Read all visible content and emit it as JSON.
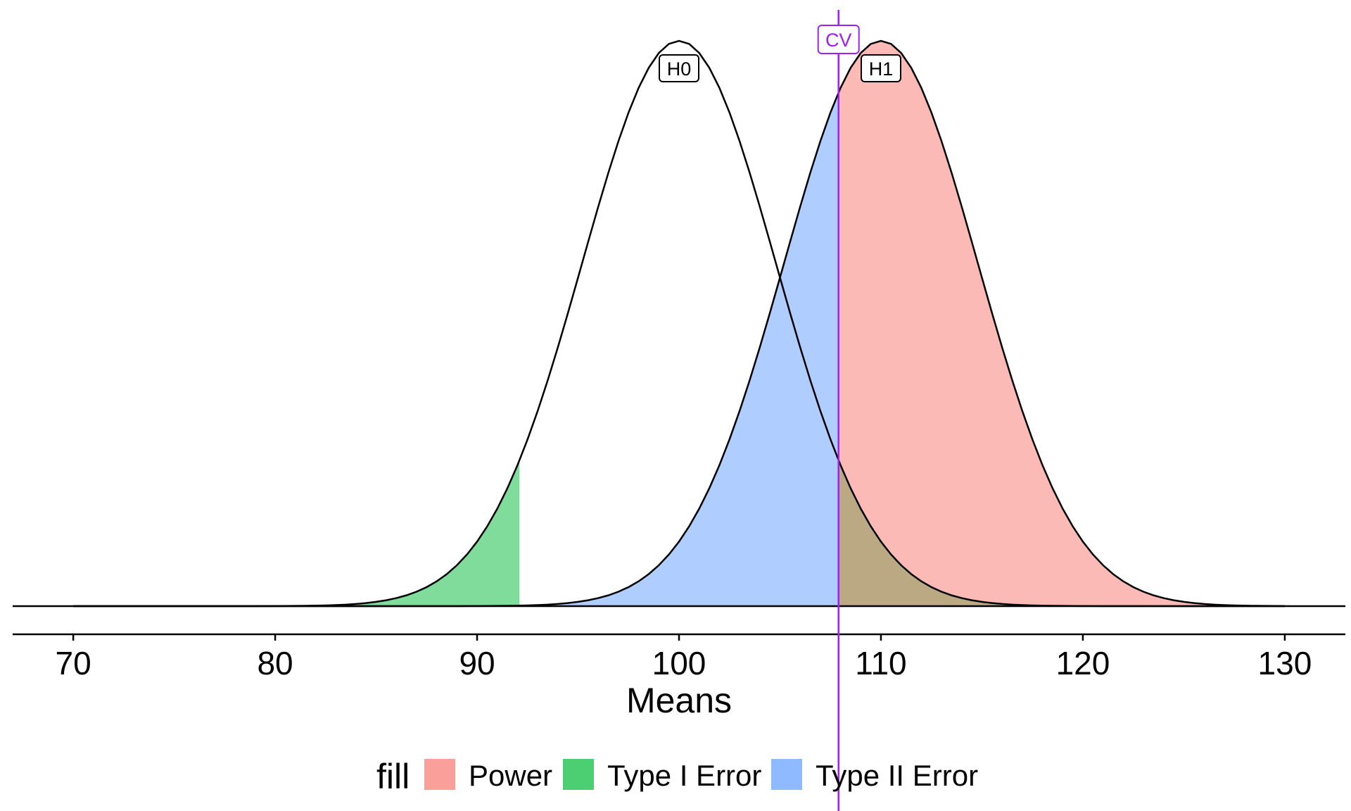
{
  "chart_data": {
    "type": "area",
    "title": "",
    "xlabel": "Means",
    "ylabel": "",
    "xlim": [
      67,
      133
    ],
    "x_ticks": [
      70,
      80,
      90,
      100,
      110,
      120,
      130
    ],
    "x_tick_labels": [
      "70",
      "80",
      "90",
      "100",
      "110",
      "120",
      "130"
    ],
    "x_range": [
      70,
      130
    ],
    "grid": false,
    "series": [
      {
        "name": "H0",
        "distribution": "normal",
        "mean": 100,
        "sd": 4.8
      },
      {
        "name": "H1",
        "distribution": "normal",
        "mean": 110,
        "sd": 4.8
      }
    ],
    "critical_value": {
      "label": "CV",
      "x": 107.9
    },
    "lower_cutoff": 92.1,
    "regions": [
      {
        "fill": "Type I Error",
        "curve": "H0",
        "from": 70,
        "to": 92.1
      },
      {
        "fill": "Type I Error",
        "curve": "H0",
        "from": 107.9,
        "to": 130
      },
      {
        "fill": "Type II Error",
        "curve": "H1",
        "from": 70,
        "to": 107.9
      },
      {
        "fill": "Power",
        "curve": "H1",
        "from": 107.9,
        "to": 130
      }
    ],
    "legend": {
      "title": "fill",
      "position": "bottom",
      "items": [
        {
          "label": "Power",
          "color": "#F8766D"
        },
        {
          "label": "Type I Error",
          "color": "#00BA38"
        },
        {
          "label": "Type II Error",
          "color": "#619CFF"
        }
      ]
    },
    "colors": {
      "power": "#F8766D",
      "type1": "#00BA38",
      "type2": "#619CFF",
      "cv": "#A020F0",
      "curve": "#000000"
    }
  }
}
